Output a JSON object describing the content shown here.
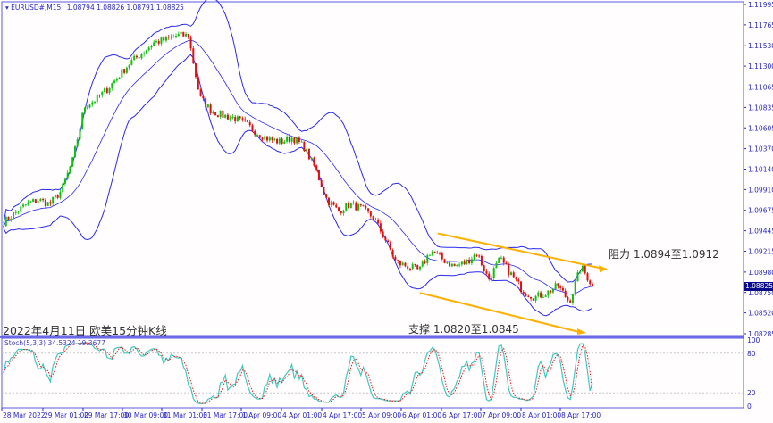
{
  "header": {
    "symbol": "EURUSD#,M15",
    "ohlc": "1.08794 1.08826 1.08791 1.08825"
  },
  "current_price": "1.08825",
  "caption": "2022年4月11日 欧美15分钟K线",
  "resistance_label": "阻力 1.0894至1.0912",
  "support_label": "支撑 1.0820至1.0845",
  "stoch_label": "Stoch(5,3,3) 34.5324 19.3677",
  "colors": {
    "band": "#2a2af0",
    "up": "#10c010",
    "down": "#e01010",
    "trend": "#ffb000",
    "stoch_main": "#40c8c0",
    "stoch_signal": "#e02020",
    "axis": "#2828c8"
  },
  "chart_data": [
    {
      "type": "candlestick",
      "title": "EURUSD#,M15",
      "indicator": "Bollinger Bands",
      "price_ticks": [
        "1.11995",
        "1.11765",
        "1.11530",
        "1.11300",
        "1.11065",
        "1.10835",
        "1.10605",
        "1.10370",
        "1.10140",
        "1.09910",
        "1.09675",
        "1.09445",
        "1.09215",
        "1.08980",
        "1.08750",
        "1.08520",
        "1.08285"
      ],
      "ylim": [
        1.08285,
        1.11995
      ],
      "time_ticks": [
        "28 Mar 2022",
        "29 Mar 01:00",
        "29 Mar 17:00",
        "30 Mar 09:00",
        "31 Mar 01:00",
        "31 Mar 17:00",
        "1 Apr 09:00",
        "4 Apr 01:00",
        "4 Apr 17:00",
        "5 Apr 09:00",
        "6 Apr 01:00",
        "6 Apr 17:00",
        "7 Apr 09:00",
        "8 Apr 01:00",
        "8 Apr 17:00"
      ],
      "approx_close_path": [
        1.09545,
        1.09645,
        1.09745,
        1.09795,
        1.09745,
        1.09895,
        1.10245,
        1.10845,
        1.10925,
        1.11045,
        1.11195,
        1.11345,
        1.11445,
        1.11565,
        1.11595,
        1.11645,
        1.11645,
        1.10945,
        1.10795,
        1.10745,
        1.10715,
        1.10645,
        1.10545,
        1.10475,
        1.10445,
        1.10495,
        1.10395,
        1.10145,
        1.09795,
        1.09665,
        1.09745,
        1.09695,
        1.09595,
        1.09365,
        1.09085,
        1.09045,
        1.08995,
        1.09225,
        1.09125,
        1.09045,
        1.09085,
        1.09195,
        1.08895,
        1.09125,
        1.08945,
        1.08765,
        1.08695,
        1.08745,
        1.08825,
        1.08645,
        1.09045,
        1.08825
      ],
      "trendlines": {
        "upper": [
          1.09415,
          1.09025
        ],
        "lower": [
          1.08745,
          1.08295
        ]
      }
    },
    {
      "type": "line",
      "title": "Stoch(5,3,3)",
      "series": [
        {
          "name": "main",
          "last": 34.5324
        },
        {
          "name": "signal",
          "last": 19.3677
        }
      ],
      "ylim": [
        0,
        100
      ],
      "y_ticks": [
        "100",
        "80",
        "20",
        "0"
      ],
      "levels": [
        80,
        20
      ]
    }
  ]
}
